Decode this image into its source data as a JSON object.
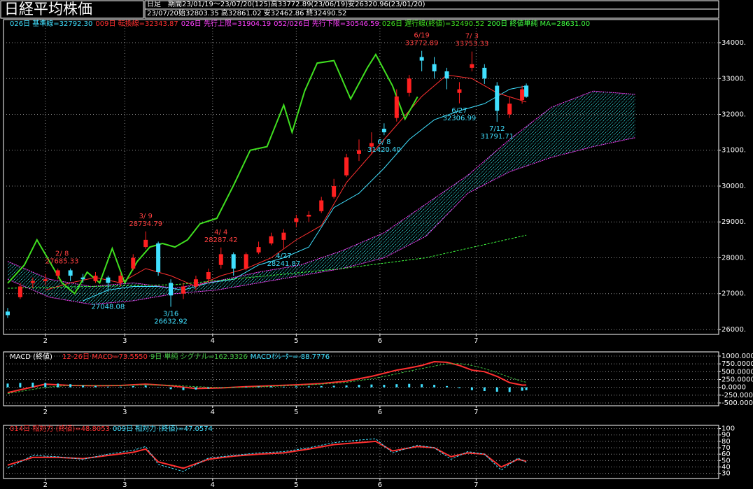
{
  "header": {
    "title": "日経平均株価",
    "timeframe": "日足",
    "period": "期間23/01/19～23/07/20(125)高33772.89(23/06/19)安26320.96(23/01/20)",
    "date": "23/07/20",
    "ohlc": "始32803.35 高32861.02 安32462.86 終32490.52"
  },
  "chart_data": [
    {
      "type": "candlestick",
      "grid": true,
      "up_color": "#ff2020",
      "down_color": "#40e0ff",
      "xlim": [
        -1,
        170
      ],
      "xticks": [
        {
          "value": 9,
          "label": "2"
        },
        {
          "value": 28,
          "label": "3"
        },
        {
          "value": 49,
          "label": "4"
        },
        {
          "value": 69,
          "label": "5"
        },
        {
          "value": 89,
          "label": "6"
        },
        {
          "value": 112,
          "label": "7"
        }
      ],
      "ylim": [
        25863,
        34644
      ],
      "yticks": [
        {
          "value": 26000,
          "label": "26000."
        },
        {
          "value": 27000,
          "label": "27000."
        },
        {
          "value": 28000,
          "label": "28000."
        },
        {
          "value": 29000,
          "label": "29000."
        },
        {
          "value": 30000,
          "label": "30000."
        },
        {
          "value": 31000,
          "label": "31000."
        },
        {
          "value": 32000,
          "label": "32000."
        },
        {
          "value": 33000,
          "label": "33000."
        },
        {
          "value": 34000,
          "label": "34000."
        }
      ],
      "candles": {
        "x": [
          0,
          3,
          6,
          9,
          12,
          15,
          18,
          21,
          24,
          27,
          30,
          33,
          36,
          39,
          42,
          45,
          48,
          51,
          54,
          57,
          60,
          63,
          66,
          69,
          72,
          75,
          78,
          81,
          84,
          87,
          90,
          93,
          96,
          99,
          102,
          105,
          108,
          111,
          114,
          117,
          120,
          123,
          124
        ],
        "open": [
          26500,
          26900,
          27300,
          27350,
          27500,
          27650,
          27450,
          27350,
          27450,
          27300,
          27700,
          28300,
          28400,
          27300,
          27000,
          27200,
          27400,
          27800,
          28100,
          27700,
          28150,
          28400,
          28500,
          29000,
          29150,
          29300,
          29700,
          30300,
          30900,
          31100,
          31600,
          31900,
          32600,
          33600,
          33400,
          33200,
          32600,
          33300,
          33300,
          32800,
          32000,
          32400,
          32803.35
        ],
        "high": [
          26600,
          27300,
          27450,
          27550,
          27700,
          27700,
          27550,
          27600,
          27500,
          27600,
          28100,
          28734.79,
          28450,
          27400,
          27300,
          27500,
          27700,
          28287.42,
          28150,
          28150,
          28450,
          28700,
          28800,
          29200,
          29300,
          29700,
          30200,
          30900,
          31300,
          31500,
          31750,
          32700,
          33100,
          33772.89,
          33600,
          33300,
          32900,
          33753.33,
          33400,
          32900,
          32500,
          32800,
          32861.02
        ],
        "low": [
          26320.96,
          26850,
          27150,
          27250,
          27400,
          27350,
          27300,
          27300,
          27048.08,
          27200,
          27650,
          28250,
          27500,
          26632.92,
          26850,
          27100,
          27300,
          27700,
          27500,
          27650,
          28100,
          28350,
          28241.87,
          28850,
          29000,
          29250,
          29650,
          30250,
          30700,
          30900,
          31420.4,
          31800,
          32500,
          33200,
          33000,
          32700,
          32306.99,
          33200,
          32850,
          31791.71,
          31900,
          32300,
          32462.86
        ],
        "close": [
          26400,
          27200,
          27350,
          27400,
          27650,
          27500,
          27400,
          27500,
          27300,
          27500,
          28000,
          28500,
          27600,
          26950,
          27200,
          27400,
          27600,
          28100,
          27700,
          28100,
          28300,
          28600,
          28700,
          29100,
          29200,
          29600,
          30000,
          30800,
          31000,
          31200,
          31500,
          32500,
          33000,
          33500,
          33200,
          33000,
          32700,
          33400,
          33000,
          32100,
          32300,
          32700,
          32490.52
        ]
      },
      "series": [
        {
          "name": "026日 基準線=32792.30",
          "color": "#40e0ff",
          "style": "line",
          "x": [
            18,
            24,
            30,
            36,
            42,
            48,
            54,
            60,
            66,
            72,
            78,
            84,
            90,
            96,
            102,
            108,
            114,
            120,
            124
          ],
          "values": [
            26800,
            27100,
            27200,
            27200,
            27100,
            27300,
            27400,
            27800,
            28000,
            28300,
            29400,
            29800,
            30500,
            31300,
            31850,
            32100,
            32300,
            32700,
            32792.3
          ]
        },
        {
          "name": "009日 転換線=32343.87",
          "color": "#ff3030",
          "style": "line",
          "x": [
            9,
            15,
            21,
            27,
            33,
            39,
            45,
            51,
            57,
            63,
            69,
            75,
            81,
            87,
            93,
            99,
            105,
            111,
            117,
            124
          ],
          "values": [
            27100,
            27300,
            27450,
            27300,
            27700,
            27500,
            27200,
            27500,
            27700,
            28000,
            28500,
            28900,
            30100,
            30900,
            31700,
            32500,
            33100,
            33000,
            32600,
            32343.87
          ]
        },
        {
          "name": "026日 先行上限=31904.19",
          "color": "#ff40ff",
          "style": "cloud-upper",
          "x": [
            0,
            10,
            20,
            30,
            40,
            50,
            60,
            70,
            80,
            90,
            100,
            110,
            120,
            130,
            140,
            150
          ],
          "values": [
            27900,
            27400,
            27200,
            27300,
            27150,
            27350,
            27600,
            27800,
            28200,
            28700,
            29500,
            30300,
            31300,
            32200,
            32650,
            32560
          ]
        },
        {
          "name": "052/026日 先行下限=30546.59",
          "color": "#ff40ff",
          "style": "cloud-lower",
          "x": [
            0,
            10,
            20,
            30,
            40,
            50,
            60,
            70,
            80,
            90,
            100,
            110,
            120,
            130,
            140,
            150
          ],
          "values": [
            27400,
            26900,
            26700,
            26800,
            27000,
            27100,
            27300,
            27500,
            27700,
            28000,
            28600,
            29800,
            30400,
            30800,
            31100,
            31350
          ]
        },
        {
          "name": "026日 遅行線(終値)=32490.52",
          "color": "#40e020",
          "style": "thick",
          "x": [
            0,
            4,
            7,
            10,
            13,
            16,
            19,
            22,
            25,
            28,
            31,
            34,
            37,
            40,
            43,
            46,
            50,
            54,
            58,
            62,
            66,
            68,
            71,
            74,
            78,
            82,
            86,
            88,
            92,
            95,
            98
          ],
          "values": [
            27290,
            27800,
            28500,
            27900,
            27300,
            27000,
            27600,
            27300,
            28260,
            27300,
            27900,
            28300,
            28400,
            28300,
            28500,
            28950,
            29100,
            30020,
            31000,
            31100,
            32260,
            31500,
            32650,
            33430,
            33500,
            32430,
            33300,
            33670,
            32800,
            31870,
            32490.52
          ]
        },
        {
          "name": "200日 終値単純 MA=28631.00",
          "color": "#40ff40",
          "style": "dash",
          "x": [
            0,
            40,
            80,
            100,
            124
          ],
          "values": [
            27150,
            27250,
            27700,
            28000,
            28631
          ]
        }
      ],
      "annotations": [
        {
          "x": 13,
          "date": "2/ 8",
          "value": 27685.33
        },
        {
          "x": 24,
          "value": 27048.08
        },
        {
          "x": 33,
          "date": "3/ 9",
          "value": 28734.79
        },
        {
          "x": 39,
          "date": "3/16",
          "value": 26632.92
        },
        {
          "x": 51,
          "date": "4/ 4",
          "value": 28287.42
        },
        {
          "x": 66,
          "date": "4/27",
          "value": 28241.87
        },
        {
          "x": 90,
          "date": "6/ 8",
          "value": 31420.4,
          "label": "31420.40"
        },
        {
          "x": 99,
          "date": "6/19",
          "value": 33772.89
        },
        {
          "x": 108,
          "date": "6/27",
          "value": 32306.99
        },
        {
          "x": 111,
          "date": "7/ 3",
          "value": 33753.33
        },
        {
          "x": 117,
          "date": "7/12",
          "value": 31791.71
        }
      ]
    },
    {
      "type": "line",
      "grid": true,
      "legend_title": "MACD (終値)",
      "xlim": [
        -1,
        170
      ],
      "xticks": [
        {
          "value": 9,
          "label": "2"
        },
        {
          "value": 28,
          "label": "3"
        },
        {
          "value": 49,
          "label": "4"
        },
        {
          "value": 69,
          "label": "5"
        },
        {
          "value": 89,
          "label": "6"
        },
        {
          "value": 112,
          "label": "7"
        }
      ],
      "ylim": [
        -590,
        1134
      ],
      "yticks": [
        {
          "value": 1000,
          "label": "1000.0000"
        },
        {
          "value": 750,
          "label": "750.0000"
        },
        {
          "value": 500,
          "label": "500.0000"
        },
        {
          "value": 250,
          "label": "250.0000"
        },
        {
          "value": 0,
          "label": "0.0000"
        },
        {
          "value": -250,
          "label": "-250.0000"
        },
        {
          "value": -500,
          "label": "-500.0000"
        }
      ],
      "series": [
        {
          "name": "12-26日 MACD=73.5550",
          "color": "#ff3030",
          "style": "thick",
          "x": [
            0,
            9,
            15,
            21,
            27,
            33,
            39,
            45,
            51,
            57,
            63,
            69,
            75,
            81,
            87,
            93,
            96,
            99,
            102,
            105,
            108,
            111,
            114,
            117,
            120,
            123,
            124
          ],
          "values": [
            -170,
            100,
            60,
            50,
            60,
            100,
            50,
            -40,
            -20,
            20,
            50,
            80,
            120,
            200,
            350,
            550,
            620,
            700,
            820,
            800,
            700,
            550,
            500,
            350,
            150,
            70,
            73.555
          ]
        },
        {
          "name": "9日 単純 シグナル=162.3326",
          "color": "#40c040",
          "style": "dash",
          "x": [
            0,
            9,
            15,
            21,
            27,
            33,
            39,
            45,
            51,
            57,
            63,
            69,
            75,
            81,
            87,
            93,
            96,
            99,
            102,
            105,
            108,
            111,
            114,
            117,
            120,
            123,
            124
          ],
          "values": [
            -200,
            0,
            60,
            60,
            60,
            80,
            70,
            20,
            -10,
            0,
            30,
            60,
            100,
            160,
            270,
            430,
            520,
            600,
            680,
            750,
            760,
            700,
            600,
            470,
            320,
            190,
            162.3326
          ]
        },
        {
          "name": "MACDｵｼﾚｰﾀｰ=-88.7776",
          "color": "#40e0ff",
          "style": "bar",
          "x": [
            0,
            3,
            6,
            9,
            12,
            15,
            18,
            21,
            24,
            27,
            30,
            33,
            36,
            39,
            42,
            45,
            48,
            51,
            54,
            57,
            60,
            63,
            66,
            69,
            72,
            75,
            78,
            81,
            84,
            87,
            90,
            93,
            96,
            99,
            102,
            105,
            108,
            111,
            114,
            117,
            120,
            123,
            124
          ],
          "values": [
            120,
            140,
            150,
            140,
            120,
            100,
            60,
            40,
            20,
            20,
            40,
            60,
            10,
            -60,
            -90,
            -70,
            -40,
            -10,
            10,
            20,
            30,
            30,
            20,
            30,
            30,
            40,
            50,
            60,
            80,
            90,
            80,
            100,
            110,
            100,
            80,
            40,
            -30,
            -90,
            -120,
            -140,
            -150,
            -110,
            -88.7776
          ]
        }
      ]
    },
    {
      "type": "line",
      "grid": true,
      "xlim": [
        -1,
        170
      ],
      "xticks": [
        {
          "value": 9,
          "label": "2"
        },
        {
          "value": 28,
          "label": "3"
        },
        {
          "value": 49,
          "label": "4"
        },
        {
          "value": 69,
          "label": "5"
        },
        {
          "value": 89,
          "label": "6"
        },
        {
          "value": 112,
          "label": "7"
        }
      ],
      "ylim": [
        22,
        105
      ],
      "yticks": [
        100,
        90,
        80,
        70,
        60,
        50,
        40,
        30
      ],
      "series": [
        {
          "name": "014日 相対力 (終値)=48.8053",
          "color": "#ff3030",
          "style": "thick",
          "x": [
            0,
            6,
            12,
            18,
            24,
            30,
            33,
            36,
            42,
            48,
            54,
            60,
            66,
            72,
            78,
            84,
            88,
            92,
            98,
            102,
            106,
            110,
            114,
            118,
            122,
            124
          ],
          "values": [
            43,
            55,
            55,
            53,
            58,
            63,
            68,
            48,
            38,
            52,
            57,
            60,
            62,
            68,
            75,
            78,
            80,
            65,
            72,
            70,
            56,
            62,
            60,
            40,
            52,
            48.8053
          ]
        },
        {
          "name": "009日 相対力 (終値)=47.0574",
          "color": "#40e0ff",
          "style": "dash",
          "x": [
            0,
            6,
            12,
            18,
            24,
            30,
            33,
            36,
            42,
            48,
            54,
            60,
            66,
            72,
            78,
            84,
            88,
            92,
            98,
            102,
            106,
            110,
            114,
            118,
            122,
            124
          ],
          "values": [
            38,
            58,
            56,
            52,
            60,
            66,
            72,
            44,
            33,
            54,
            58,
            62,
            64,
            70,
            78,
            82,
            84,
            62,
            74,
            70,
            52,
            64,
            60,
            35,
            54,
            47.0574
          ]
        }
      ]
    }
  ]
}
